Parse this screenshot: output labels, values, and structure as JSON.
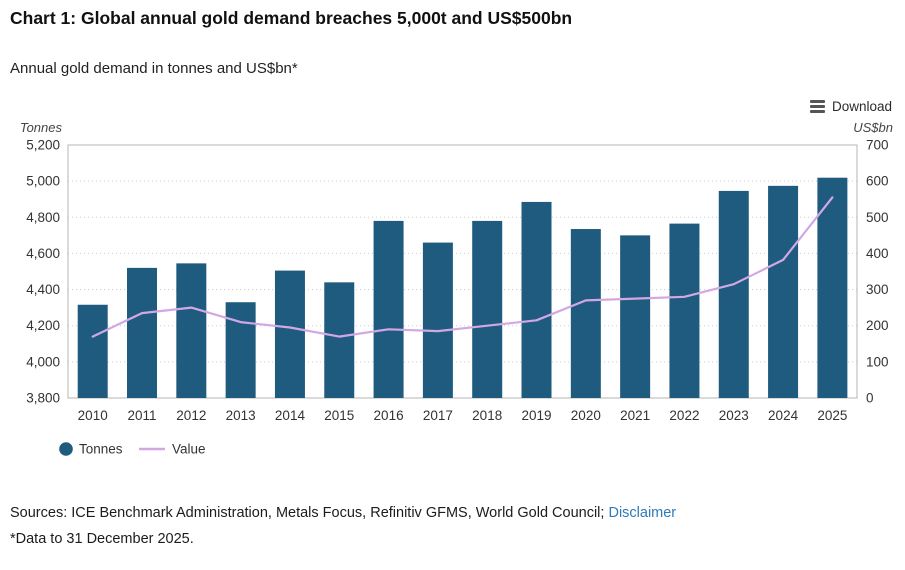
{
  "header": {
    "title": "Chart 1: Global annual gold demand breaches 5,000t and US$500bn",
    "subtitle": "Annual gold demand in tonnes and US$bn*"
  },
  "toolbar": {
    "download_label": "Download"
  },
  "footer": {
    "sources": "Sources: ICE Benchmark Administration, Metals Focus, Refinitiv GFMS, World Gold Council;",
    "disclaimer": "Disclaimer",
    "footnote": "*Data to 31 December 2025."
  },
  "colors": {
    "bar": "#1f5b7e",
    "line": "#d2a8e4",
    "link": "#2e7bb8",
    "grid": "#cccccc",
    "axis": "#b6b6b6",
    "text": "#333333"
  },
  "chart_data": {
    "type": "bar",
    "title": "Chart 1: Global annual gold demand breaches 5,000t and US$500bn",
    "subtitle": "Annual gold demand in tonnes and US$bn*",
    "categories": [
      "2010",
      "2011",
      "2012",
      "2013",
      "2014",
      "2015",
      "2016",
      "2017",
      "2018",
      "2019",
      "2020",
      "2021",
      "2022",
      "2023",
      "2024",
      "2025"
    ],
    "series": [
      {
        "name": "Tonnes",
        "type": "column",
        "axis": "left",
        "color": "#1f5b7e",
        "values": [
          4316,
          4520,
          4545,
          4330,
          4505,
          4440,
          4780,
          4660,
          4780,
          4885,
          4735,
          4700,
          4765,
          4946,
          4974,
          5019
        ]
      },
      {
        "name": "Value",
        "type": "line",
        "axis": "right",
        "color": "#d2a8e4",
        "values": [
          170,
          235,
          250,
          210,
          195,
          170,
          190,
          185,
          200,
          215,
          270,
          275,
          280,
          315,
          382,
          555
        ]
      }
    ],
    "left_axis": {
      "title": "Tonnes",
      "min": 3800,
      "max": 5200,
      "tick_interval": 200,
      "tick_labels": [
        "5,200",
        "5,000",
        "4,800",
        "4,600",
        "4,400",
        "4,200",
        "4,000",
        "3,800"
      ]
    },
    "right_axis": {
      "title": "US$bn",
      "min": 0,
      "max": 700,
      "tick_interval": 100,
      "tick_labels": [
        "700",
        "600",
        "500",
        "400",
        "300",
        "200",
        "100",
        "0"
      ]
    },
    "legend": {
      "position": "bottom-left",
      "items": [
        {
          "label": "Tonnes",
          "marker": "circle"
        },
        {
          "label": "Value",
          "marker": "line"
        }
      ]
    },
    "grid": "dotted-horizontal"
  }
}
